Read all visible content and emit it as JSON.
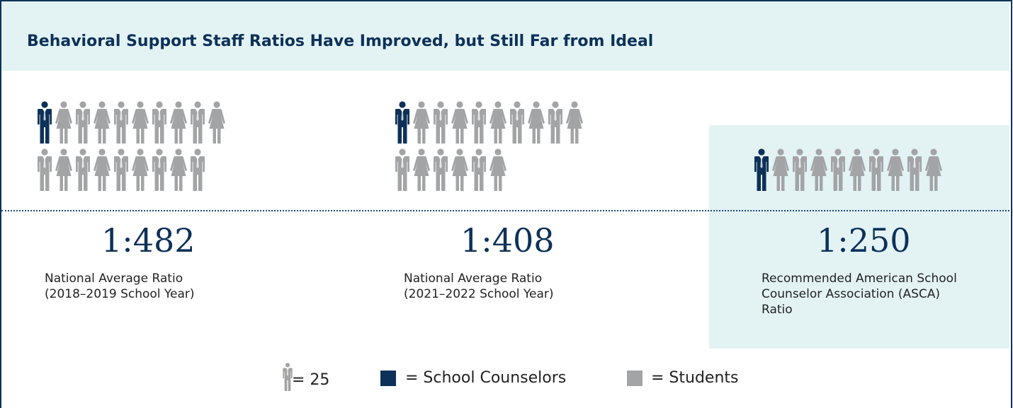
{
  "title": "Behavioral Support Staff Ratios Have Improved, but Still Far from Ideal",
  "colors": {
    "counselor": "#0d3158",
    "student": "#a3a4a6",
    "highlight": "#e3f3f4"
  },
  "panels": [
    {
      "ratio": "1:482",
      "description": "National Average Ratio (2018–2019 School Year)",
      "rows": [
        10,
        9
      ]
    },
    {
      "ratio": "1:408",
      "description": "National Average Ratio (2021–2022 School Year)",
      "rows": [
        10,
        6
      ]
    },
    {
      "ratio": "1:250",
      "description": "Recommended American School Counselor Association (ASCA) Ratio",
      "rows": [
        10
      ]
    }
  ],
  "legend": {
    "icon_value": "= 25",
    "counselors_label": "= School Counselors",
    "students_label": "= Students"
  }
}
